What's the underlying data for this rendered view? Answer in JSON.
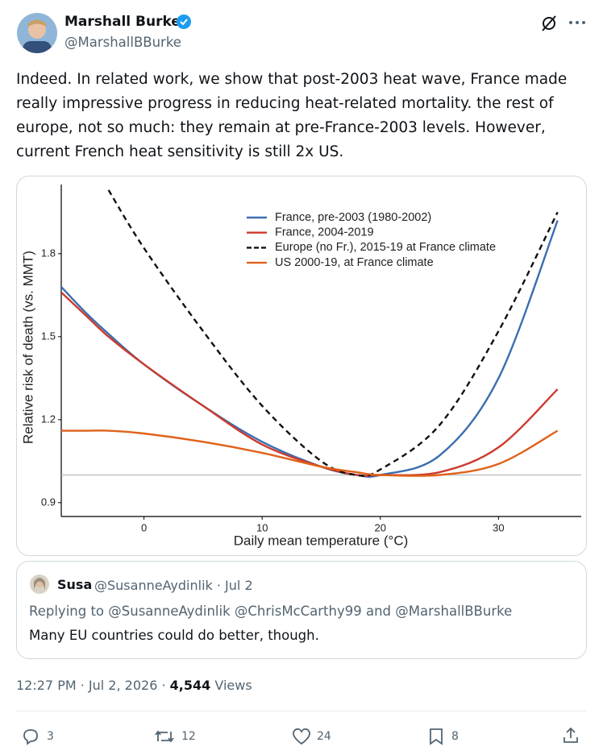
{
  "tweet": {
    "name": "Marshall Burke",
    "handle": "@MarshallBBurke",
    "text_lines": [
      "Indeed.  In related work, we show that post-2003 heat wave, France made",
      "really impressive progress in reducing heat-related mortality.  the rest of",
      "europe, not so much:  they remain at pre-France-2003 levels.  However,",
      "current French heat sensitivity is still 2x US."
    ]
  },
  "chart_data": {
    "type": "line",
    "x_label": "Daily mean temperature (°C)",
    "y_label": "Relative risk of death (vs. MMT)",
    "x": [
      -7,
      -5,
      -3,
      0,
      5,
      10,
      15,
      18,
      20,
      25,
      30,
      35
    ],
    "series": [
      {
        "name": "France, pre-2003 (1980-2002)",
        "color": "#3a6fb0",
        "dash": false,
        "values": [
          1.68,
          1.59,
          1.51,
          1.4,
          1.25,
          1.12,
          1.03,
          1.0,
          1.0,
          1.07,
          1.35,
          1.92
        ]
      },
      {
        "name": "France, 2004-2019",
        "color": "#cc3a2d",
        "dash": false,
        "values": [
          1.66,
          1.58,
          1.5,
          1.4,
          1.25,
          1.11,
          1.03,
          1.0,
          1.0,
          1.01,
          1.1,
          1.31
        ]
      },
      {
        "name": "Europe (no Fr.), 2015-19 at France climate",
        "color": "#111111",
        "dash": true,
        "values": [
          null,
          null,
          2.03,
          1.82,
          1.52,
          1.25,
          1.05,
          1.0,
          1.02,
          1.18,
          1.52,
          1.95
        ]
      },
      {
        "name": "US 2000-19, at France climate",
        "color": "#e0621a",
        "dash": false,
        "values": [
          1.16,
          1.16,
          1.16,
          1.15,
          1.12,
          1.08,
          1.03,
          1.01,
          1.0,
          1.0,
          1.04,
          1.16
        ]
      }
    ],
    "xlim": [
      -7,
      37
    ],
    "ylim": [
      0.85,
      2.05
    ],
    "xticks": [
      0,
      10,
      20,
      30
    ],
    "yticks": [
      0.9,
      1.2,
      1.5,
      1.8
    ],
    "hline": 1.0,
    "hline_color": "#bbbbbb"
  },
  "quote": {
    "name": "Susa",
    "meta": "@SusanneAydinlik · Jul 2",
    "replying": "Replying to @SusanneAydinlik @ChrisMcCarthy99 and @MarshallBBurke",
    "text": "Many EU countries could do better, though."
  },
  "footer": {
    "timestamp": "12:27 PM · Jul 2, 2026 ·",
    "views_count": "4,544",
    "views_label": "Views"
  },
  "actions": {
    "replies": 3,
    "reposts": 12,
    "likes": 24,
    "bookmarks": 8
  }
}
